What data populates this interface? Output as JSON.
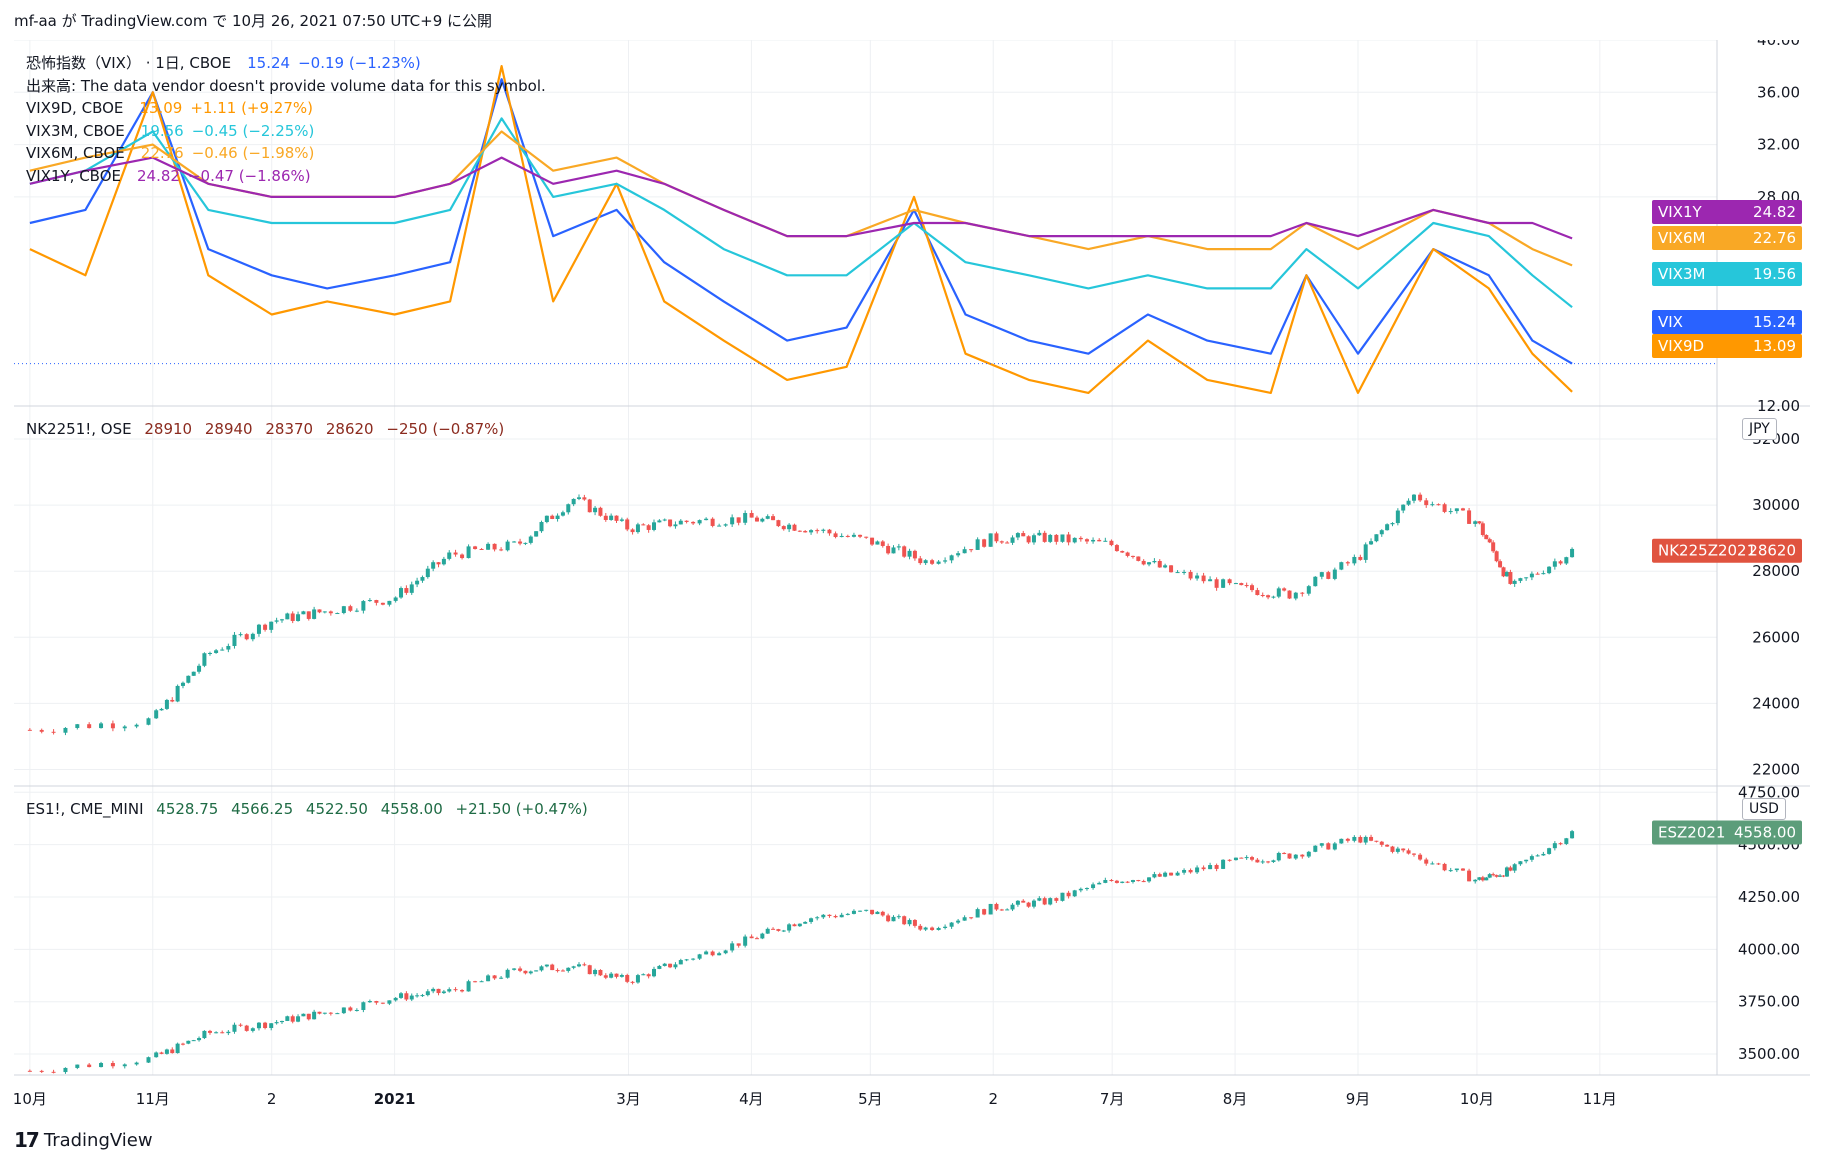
{
  "publish_line": "mf-aa が TradingView.com で 10月 26, 2021 07:50 UTC+9 に公開",
  "brand": "TradingView",
  "colors": {
    "vix": "#2962ff",
    "vix9d": "#ff9800",
    "vix3m": "#26c6da",
    "vix6m": "#f9a825",
    "vix1y": "#9c27b0",
    "up": "#26a69a",
    "down": "#ef5350",
    "nk_tag": "#e0533f",
    "es_tag": "#5c9d7a",
    "grid": "#eef0f3",
    "axis": "#131722"
  },
  "panes": {
    "vix": {
      "legend": [
        {
          "name": "恐怖指数（VIX）",
          "interval": "1日",
          "exchange": "CBOE",
          "last": "15.24",
          "change": "−0.19 (−1.23%)",
          "color_key": "vix"
        },
        {
          "name": "出来高: The data vendor doesn't provide volume data for this symbol.",
          "color_key": "axis"
        },
        {
          "name": "VIX9D",
          "exchange": "CBOE",
          "last": "13.09",
          "change": "+1.11 (+9.27%)",
          "color_key": "vix9d"
        },
        {
          "name": "VIX3M",
          "exchange": "CBOE",
          "last": "19.56",
          "change": "−0.45 (−2.25%)",
          "color_key": "vix3m"
        },
        {
          "name": "VIX6M",
          "exchange": "CBOE",
          "last": "22.76",
          "change": "−0.46 (−1.98%)",
          "color_key": "vix6m"
        },
        {
          "name": "VIX1Y",
          "exchange": "CBOE",
          "last": "24.82",
          "change": "−0.47 (−1.86%)",
          "color_key": "vix1y"
        }
      ],
      "y_ticks": [
        "40.00",
        "36.00",
        "32.00",
        "28.00",
        "12.00"
      ],
      "tags": [
        {
          "label": "VIX1Y",
          "value": "24.82",
          "color_key": "vix1y"
        },
        {
          "label": "VIX6M",
          "value": "22.76",
          "color_key": "vix6m"
        },
        {
          "label": "VIX3M",
          "value": "19.56",
          "color_key": "vix3m"
        },
        {
          "label": "VIX",
          "value": "15.24",
          "color_key": "vix"
        },
        {
          "label": "VIX9D",
          "value": "13.09",
          "color_key": "vix9d"
        }
      ]
    },
    "nk": {
      "legend": {
        "symbol": "NK2251!, OSE",
        "open": "28910",
        "high": "28940",
        "low": "28370",
        "close": "28620",
        "change": "−250 (−0.87%)"
      },
      "currency": "JPY",
      "y_ticks": [
        "32000",
        "30000",
        "28000",
        "26000",
        "24000",
        "22000"
      ],
      "tag": {
        "label": "NK225Z2021",
        "value": "28620"
      }
    },
    "es": {
      "legend": {
        "symbol": "ES1!, CME_MINI",
        "open": "4528.75",
        "high": "4566.25",
        "low": "4522.50",
        "close": "4558.00",
        "change": "+21.50 (+0.47%)"
      },
      "currency": "USD",
      "y_ticks": [
        "4750.00",
        "4500.00",
        "4250.00",
        "4000.00",
        "3750.00",
        "3500.00"
      ],
      "tag": {
        "label": "ESZ2021",
        "value": "4558.00"
      }
    }
  },
  "x_axis": [
    "10月",
    "11月",
    "2",
    "2021",
    "3月",
    "4月",
    "5月",
    "2",
    "7月",
    "8月",
    "9月",
    "10月",
    "11月"
  ],
  "chart_data": [
    {
      "type": "line",
      "title": "恐怖指数（VIX）",
      "ylim": [
        12,
        40
      ],
      "x": [
        "2020-10-01",
        "2020-10-15",
        "2020-11-01",
        "2020-11-15",
        "2020-12-01",
        "2020-12-15",
        "2021-01-01",
        "2021-01-15",
        "2021-01-28",
        "2021-02-10",
        "2021-02-26",
        "2021-03-10",
        "2021-03-25",
        "2021-04-10",
        "2021-04-25",
        "2021-05-12",
        "2021-05-25",
        "2021-06-10",
        "2021-06-25",
        "2021-07-10",
        "2021-07-25",
        "2021-08-10",
        "2021-08-19",
        "2021-09-01",
        "2021-09-20",
        "2021-10-04",
        "2021-10-15",
        "2021-10-25"
      ],
      "series": [
        {
          "name": "VIX",
          "values": [
            26,
            27,
            36,
            24,
            22,
            21,
            22,
            23,
            37,
            25,
            27,
            23,
            20,
            17,
            18,
            27,
            19,
            17,
            16,
            19,
            17,
            16,
            22,
            16,
            24,
            22,
            17,
            15.24
          ]
        },
        {
          "name": "VIX9D",
          "values": [
            24,
            22,
            36,
            22,
            19,
            20,
            19,
            20,
            38,
            20,
            29,
            20,
            17,
            14,
            15,
            28,
            16,
            14,
            13,
            17,
            14,
            13,
            22,
            13,
            24,
            21,
            16,
            13.09
          ]
        },
        {
          "name": "VIX3M",
          "values": [
            29,
            30,
            33,
            27,
            26,
            26,
            26,
            27,
            34,
            28,
            29,
            27,
            24,
            22,
            22,
            26,
            23,
            22,
            21,
            22,
            21,
            21,
            24,
            21,
            26,
            25,
            22,
            19.56
          ]
        },
        {
          "name": "VIX6M",
          "values": [
            30,
            31,
            32,
            29,
            28,
            28,
            28,
            29,
            33,
            30,
            31,
            29,
            27,
            25,
            25,
            27,
            26,
            25,
            24,
            25,
            24,
            24,
            26,
            24,
            27,
            26,
            24,
            22.76
          ]
        },
        {
          "name": "VIX1Y",
          "values": [
            29,
            30,
            31,
            29,
            28,
            28,
            28,
            29,
            31,
            29,
            30,
            29,
            27,
            25,
            25,
            26,
            26,
            25,
            25,
            25,
            25,
            25,
            26,
            25,
            27,
            26,
            26,
            24.82
          ]
        }
      ]
    },
    {
      "type": "candlestick",
      "title": "NK2251!, OSE",
      "ylim": [
        21500,
        33000
      ],
      "x": [
        "2020-10",
        "2020-11-01",
        "2020-11-15",
        "2020-12-01",
        "2020-12-15",
        "2021-01-01",
        "2021-01-15",
        "2021-02-01",
        "2021-02-15",
        "2021-03-01",
        "2021-03-15",
        "2021-04-01",
        "2021-04-15",
        "2021-05-01",
        "2021-05-15",
        "2021-06-01",
        "2021-06-15",
        "2021-07-01",
        "2021-07-15",
        "2021-08-01",
        "2021-08-15",
        "2021-09-01",
        "2021-09-15",
        "2021-10-01",
        "2021-10-10",
        "2021-10-25"
      ],
      "close": [
        23200,
        23500,
        25500,
        26500,
        26800,
        27200,
        28500,
        28800,
        30200,
        29300,
        29500,
        29600,
        29300,
        28900,
        28300,
        29000,
        29000,
        28800,
        28000,
        27500,
        27300,
        28400,
        30300,
        29500,
        27500,
        28620
      ]
    },
    {
      "type": "candlestick",
      "title": "ES1!, CME_MINI",
      "ylim": [
        3400,
        4780
      ],
      "x": [
        "2020-10",
        "2020-11-01",
        "2020-11-15",
        "2020-12-01",
        "2020-12-15",
        "2021-01-01",
        "2021-01-15",
        "2021-02-01",
        "2021-02-15",
        "2021-03-01",
        "2021-03-15",
        "2021-04-01",
        "2021-04-15",
        "2021-05-01",
        "2021-05-15",
        "2021-06-01",
        "2021-06-15",
        "2021-07-01",
        "2021-07-15",
        "2021-08-01",
        "2021-08-15",
        "2021-09-01",
        "2021-09-15",
        "2021-10-01",
        "2021-10-10",
        "2021-10-25"
      ],
      "close": [
        3420,
        3480,
        3600,
        3650,
        3700,
        3770,
        3800,
        3900,
        3920,
        3850,
        3950,
        4050,
        4150,
        4180,
        4100,
        4200,
        4230,
        4330,
        4350,
        4420,
        4450,
        4530,
        4450,
        4330,
        4380,
        4558
      ]
    }
  ]
}
